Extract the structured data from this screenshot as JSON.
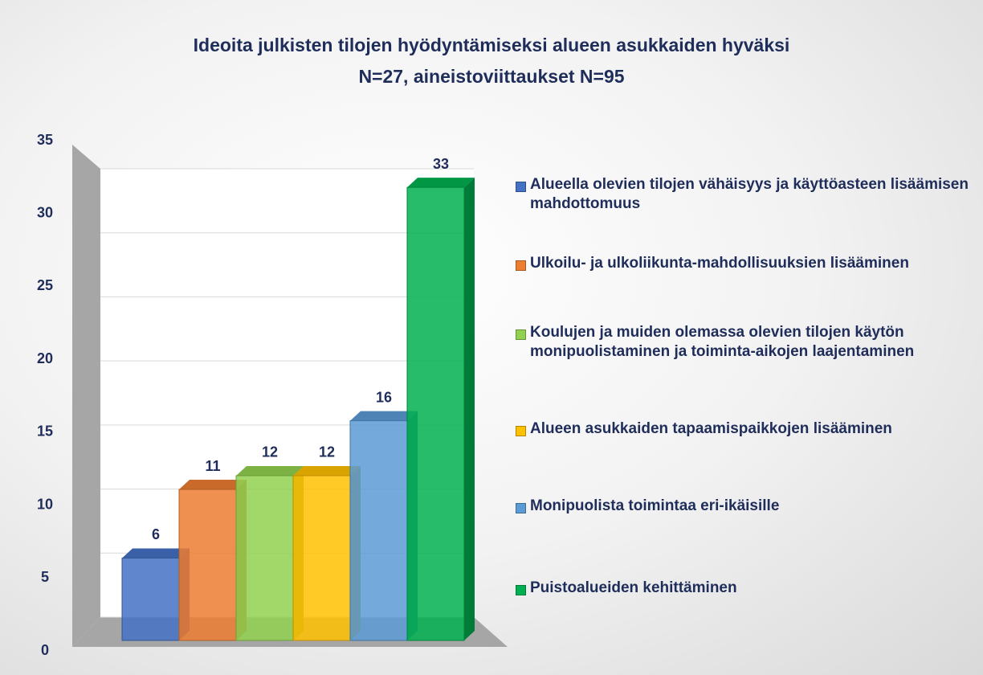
{
  "chart_data": {
    "type": "bar",
    "title": "Ideoita julkisten tilojen hyödyntämiseksi alueen asukkaiden hyväksi",
    "subtitle": "N=27, aineistoviittaukset N=95",
    "series": [
      {
        "name": "Alueella olevien tilojen vähäisyys ja käyttöasteen lisäämisen mahdottomuus",
        "color": "#4472c4",
        "values": [
          6
        ]
      },
      {
        "name": "Ulkoilu- ja ulkoliikunta-mahdollisuuksien lisääminen",
        "color": "#ed7d31",
        "values": [
          11
        ]
      },
      {
        "name": "Koulujen ja muiden olemassa olevien tilojen käytön monipuolistaminen ja toiminta-aikojen laajentaminen",
        "color": "#92d050",
        "values": [
          12
        ]
      },
      {
        "name": "Alueen asukkaiden tapaamispaikkojen lisääminen",
        "color": "#ffc000",
        "values": [
          12
        ]
      },
      {
        "name": "Monipuolista toimintaa eri-ikäisille",
        "color": "#5b9bd5",
        "values": [
          16
        ]
      },
      {
        "name": "Puistoalueiden kehittäminen",
        "color": "#00b050",
        "values": [
          33
        ]
      }
    ],
    "ylim": [
      0,
      35
    ],
    "yticks": [
      0,
      5,
      10,
      15,
      20,
      25,
      30,
      35
    ],
    "grid": true,
    "legend": "right"
  }
}
